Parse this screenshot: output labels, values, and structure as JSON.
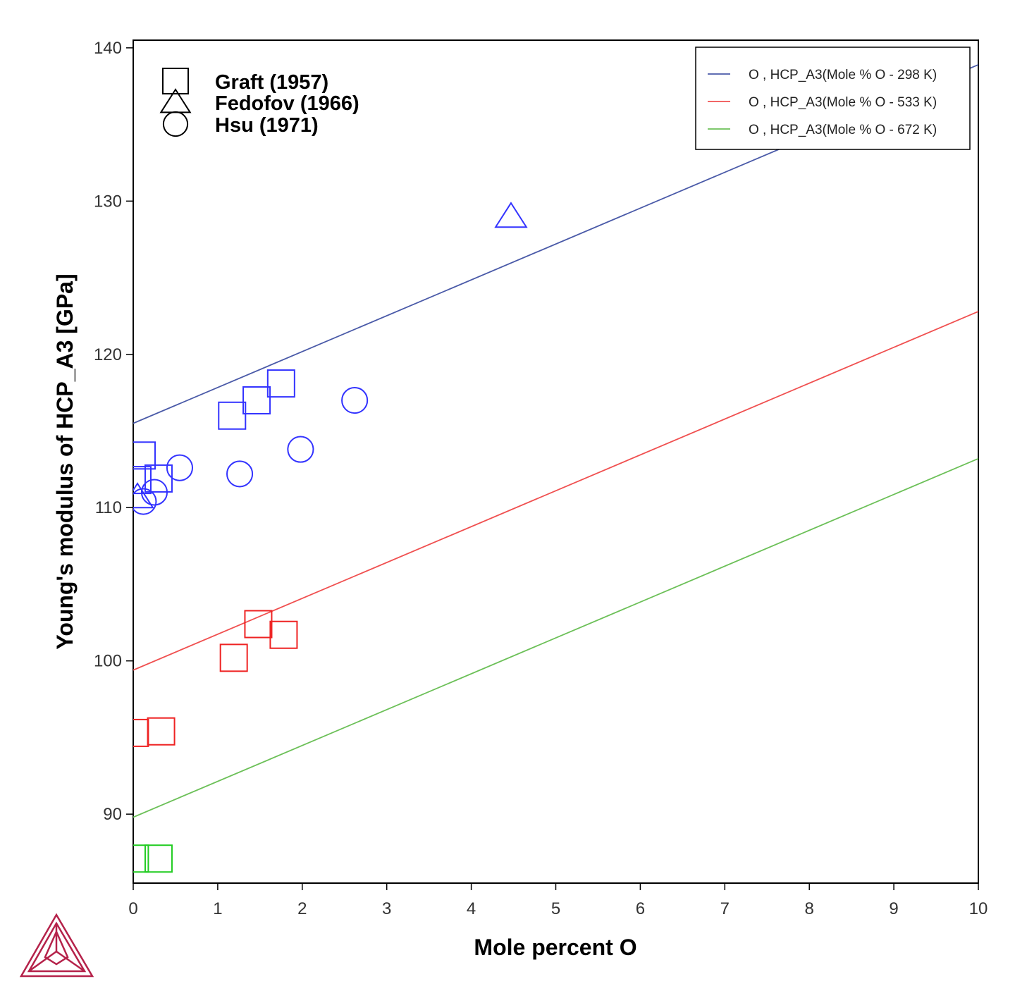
{
  "chart_data": {
    "type": "scatter",
    "xlabel": "Mole percent O",
    "ylabel": "Young's modulus of HCP_A3 [GPa]",
    "xlim": [
      0,
      10
    ],
    "ylim": [
      85.5,
      140.5
    ],
    "x_ticks": [
      "0",
      "1",
      "2",
      "3",
      "4",
      "5",
      "6",
      "7",
      "8",
      "9",
      "10"
    ],
    "y_ticks": [
      "90",
      "100",
      "110",
      "120",
      "130",
      "140"
    ],
    "grid": false,
    "legend_position": "top-right",
    "lines": [
      {
        "name": "O , HCP_A3(Mole % O - 298 K)",
        "color": "#4a5aa8",
        "x": [
          0,
          10
        ],
        "y": [
          115.5,
          138.9
        ]
      },
      {
        "name": "O , HCP_A3(Mole % O - 533 K)",
        "color": "#f05050",
        "x": [
          0,
          10
        ],
        "y": [
          99.4,
          122.8
        ]
      },
      {
        "name": "O , HCP_A3(Mole % O - 672 K)",
        "color": "#6cc058",
        "x": [
          0,
          10
        ],
        "y": [
          89.8,
          113.2
        ]
      }
    ],
    "marker_legend": [
      {
        "marker": "square",
        "label": "Graft (1957)"
      },
      {
        "marker": "triangle",
        "label": "Fedofov (1966)"
      },
      {
        "marker": "circle",
        "label": "Hsu (1971)"
      }
    ],
    "points": [
      {
        "marker": "square",
        "color": "#3333ff",
        "x": 0.1,
        "y": 113.4
      },
      {
        "marker": "square",
        "color": "#3333ff",
        "x": 0.05,
        "y": 111.8
      },
      {
        "marker": "square",
        "color": "#3333ff",
        "x": 0.3,
        "y": 111.9
      },
      {
        "marker": "square",
        "color": "#3333ff",
        "x": 1.17,
        "y": 116.0
      },
      {
        "marker": "square",
        "color": "#3333ff",
        "x": 1.46,
        "y": 117.0
      },
      {
        "marker": "square",
        "color": "#3333ff",
        "x": 1.75,
        "y": 118.1
      },
      {
        "marker": "triangle",
        "color": "#3333ff",
        "x": 4.47,
        "y": 129.0
      },
      {
        "marker": "triangle",
        "color": "#3333ff",
        "x": 0.05,
        "y": 110.7
      },
      {
        "marker": "circle",
        "color": "#3333ff",
        "x": 0.12,
        "y": 110.4
      },
      {
        "marker": "circle",
        "color": "#3333ff",
        "x": 0.25,
        "y": 111.0
      },
      {
        "marker": "circle",
        "color": "#3333ff",
        "x": 0.55,
        "y": 112.6
      },
      {
        "marker": "circle",
        "color": "#3333ff",
        "x": 1.26,
        "y": 112.2
      },
      {
        "marker": "circle",
        "color": "#3333ff",
        "x": 1.98,
        "y": 113.8
      },
      {
        "marker": "circle",
        "color": "#3333ff",
        "x": 2.62,
        "y": 117.0
      },
      {
        "marker": "square",
        "color": "#ee2222",
        "x": 1.19,
        "y": 100.2
      },
      {
        "marker": "square",
        "color": "#ee2222",
        "x": 1.48,
        "y": 102.4
      },
      {
        "marker": "square",
        "color": "#ee2222",
        "x": 1.78,
        "y": 101.7
      },
      {
        "marker": "square",
        "color": "#ee2222",
        "x": 0.02,
        "y": 95.3
      },
      {
        "marker": "square",
        "color": "#ee2222",
        "x": 0.33,
        "y": 95.4
      },
      {
        "marker": "square",
        "color": "#22cc22",
        "x": 0.02,
        "y": 87.1
      },
      {
        "marker": "square",
        "color": "#22cc22",
        "x": 0.3,
        "y": 87.1
      }
    ]
  },
  "logo": {
    "name": "thermo-calc-logo",
    "color": "#b5224a"
  }
}
